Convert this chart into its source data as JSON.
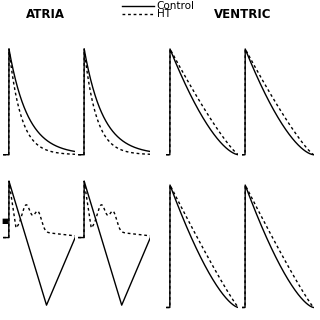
{
  "background_color": "#ffffff",
  "text_color": "#000000",
  "section_labels": [
    "ATRIA",
    "VENTRIC"
  ],
  "label_fontsize": 8.5,
  "legend_labels": [
    "Control",
    "HT"
  ],
  "legend_fontsize": 7.5,
  "lw_solid": 1.0,
  "lw_dotted": 1.0,
  "dot_pattern": [
    2,
    2
  ]
}
